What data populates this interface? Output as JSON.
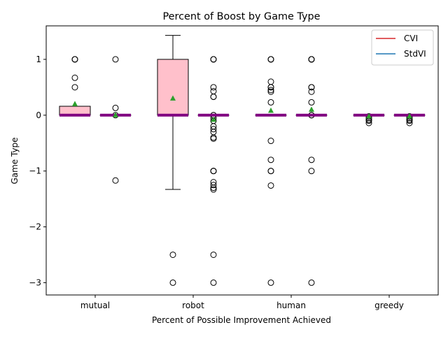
{
  "chart_data": {
    "type": "box",
    "title": "Percent of Boost by Game Type",
    "xlabel": "Percent of Possible Improvement Achieved",
    "ylabel": "Game Type",
    "categories": [
      "mutual",
      "robot",
      "human",
      "greedy"
    ],
    "ylim": [
      -3.22,
      1.6
    ],
    "yticks": [
      1,
      0,
      -1,
      -2,
      -3
    ],
    "ytick_labels": [
      "1",
      "0",
      "−1",
      "−2",
      "−3"
    ],
    "grid": false,
    "legend": {
      "placement": "top-right",
      "entries": [
        {
          "name": "CVI",
          "color": "#d62728"
        },
        {
          "name": "StdVI",
          "color": "#1f77b4"
        }
      ]
    },
    "series": [
      {
        "name": "CVI",
        "box_fill": "#ffc0cb",
        "boxes": [
          {
            "category": "mutual",
            "q1": 0,
            "median": 0,
            "q3": 0.16,
            "whisker_low": 0,
            "whisker_high": 0.16,
            "mean": 0.2,
            "outliers": [
              1,
              1,
              1,
              0.67,
              0.5
            ]
          },
          {
            "category": "robot",
            "q1": 0,
            "median": 0,
            "q3": 1,
            "whisker_low": -1.33,
            "whisker_high": 1.43,
            "mean": 0.3,
            "outliers": [
              -2.5,
              -3
            ]
          },
          {
            "category": "human",
            "q1": 0,
            "median": 0,
            "q3": 0,
            "whisker_low": 0,
            "whisker_high": 0,
            "mean": 0.08,
            "outliers": [
              1,
              1,
              1,
              0.6,
              0.5,
              0.5,
              0.45,
              0.42,
              0.23,
              -0.46,
              -0.8,
              -1,
              -1,
              -1.26,
              -3
            ]
          },
          {
            "category": "greedy",
            "q1": 0,
            "median": 0,
            "q3": 0,
            "whisker_low": 0,
            "whisker_high": 0,
            "mean": -0.02,
            "outliers": [
              -0.02,
              -0.05,
              -0.08,
              -0.1,
              -0.14
            ]
          }
        ]
      },
      {
        "name": "StdVI",
        "box_fill": "#ffffff",
        "boxes": [
          {
            "category": "mutual",
            "q1": 0,
            "median": 0,
            "q3": 0,
            "whisker_low": 0,
            "whisker_high": 0,
            "mean": 0,
            "outliers": [
              1,
              0.13,
              0,
              -1.17
            ]
          },
          {
            "category": "robot",
            "q1": 0,
            "median": 0,
            "q3": 0,
            "whisker_low": 0,
            "whisker_high": 0,
            "mean": -0.08,
            "outliers": [
              1,
              1,
              1,
              0.5,
              0.43,
              0.33,
              0.33,
              0,
              0,
              -0.05,
              -0.1,
              -0.2,
              -0.25,
              -0.3,
              -0.4,
              -0.42,
              -1,
              -1,
              -1,
              -1.2,
              -1.25,
              -1.3,
              -1.33,
              -2.5,
              -3
            ]
          },
          {
            "category": "human",
            "q1": 0,
            "median": 0,
            "q3": 0,
            "whisker_low": 0,
            "whisker_high": 0,
            "mean": 0.1,
            "outliers": [
              1,
              1,
              1,
              1,
              0.5,
              0.5,
              0.42,
              0.23,
              0,
              0,
              -0.8,
              -1,
              -3
            ]
          },
          {
            "category": "greedy",
            "q1": 0,
            "median": 0,
            "q3": 0,
            "whisker_low": 0,
            "whisker_high": 0,
            "mean": -0.02,
            "outliers": [
              -0.02,
              -0.05,
              -0.08,
              -0.1,
              -0.14
            ]
          }
        ]
      }
    ],
    "colors": {
      "median": "#800080",
      "mean_marker": "#2ca02c",
      "box_edge": "#000000",
      "axes": "#000000"
    }
  }
}
